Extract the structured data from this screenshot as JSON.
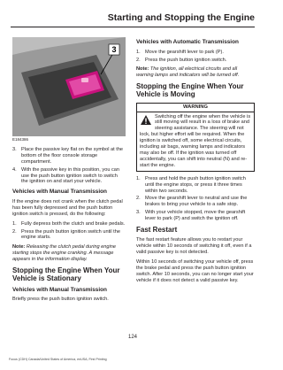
{
  "header": {
    "title": "Starting and Stopping the Engine"
  },
  "left": {
    "figure": {
      "callout": "3",
      "id": "E184386"
    },
    "steps": [
      {
        "number": "3.",
        "text": "Place the passive key flat on the symbol at the bottom of the floor console storage compartment."
      },
      {
        "number": "4.",
        "text": "With the passive key in this position, you can use the push button ignition switch to switch the ignition on and start your vehicle."
      }
    ],
    "manual_heading": "Vehicles with Manual Transmission",
    "manual_intro": "If the engine does not crank when the clutch pedal has been fully depressed and the push button ignition switch is pressed, do the following:",
    "manual_steps": [
      {
        "number": "1.",
        "text": "Fully depress both the clutch and brake pedals."
      },
      {
        "number": "2.",
        "text": "Press the push button ignition switch until the engine starts."
      }
    ],
    "note": {
      "label": "Note:",
      "text": "Releasing the clutch pedal during engine starting stops the engine cranking. A message appears in the information display."
    },
    "stationary_heading": "Stopping the Engine When Your Vehicle is Stationary",
    "stationary_sub": "Vehicles with Manual Transmission",
    "stationary_text": "Briefly press the push button ignition switch."
  },
  "right": {
    "auto_heading": "Vehicles with Automatic Transmission",
    "auto_steps": [
      {
        "number": "1.",
        "text": "Move the gearshift lever to park (P)."
      },
      {
        "number": "2.",
        "text": "Press the push button ignition switch."
      }
    ],
    "note": {
      "label": "Note:",
      "text": "The ignition, all electrical circuits and all warning lamps and indicators will be turned off."
    },
    "moving_heading": "Stopping the Engine When Your Vehicle is Moving",
    "warning": {
      "title": "WARNING",
      "text": "Switching off the engine when the vehicle is still moving will result in a loss of brake and steering assistance. The steering will not lock, but higher effort will be required. When the ignition is switched off, some electrical circuits, including air bags, warning lamps and indicators may also be off. If the ignition was turned off accidentally, you can shift into neutral (N) and re-start the engine."
    },
    "moving_steps": [
      {
        "number": "1.",
        "text": "Press and hold the push button ignition switch until the engine stops, or press it three times within two seconds."
      },
      {
        "number": "2.",
        "text": "Move the gearshift lever to neutral and use the brakes to bring your vehicle to a safe stop."
      },
      {
        "number": "3.",
        "text": "With your vehicle stopped, move the gearshift lever to park (P) and switch the ignition off."
      }
    ],
    "fast_heading": "Fast Restart",
    "fast_paragraphs": [
      "The fast restart feature allows you to restart your vehicle within 10 seconds of switching it off, even if a valid passive key is not detected.",
      "Within 10 seconds of switching your vehicle off, press the brake pedal and press the push button ignition switch. After 10 seconds, you can no longer start your vehicle if it does not detect a valid passive key."
    ]
  },
  "footer": {
    "page_number": "124",
    "imprint": "Focus (CDH) Canada/United States of America, enUSA, First Printing"
  }
}
